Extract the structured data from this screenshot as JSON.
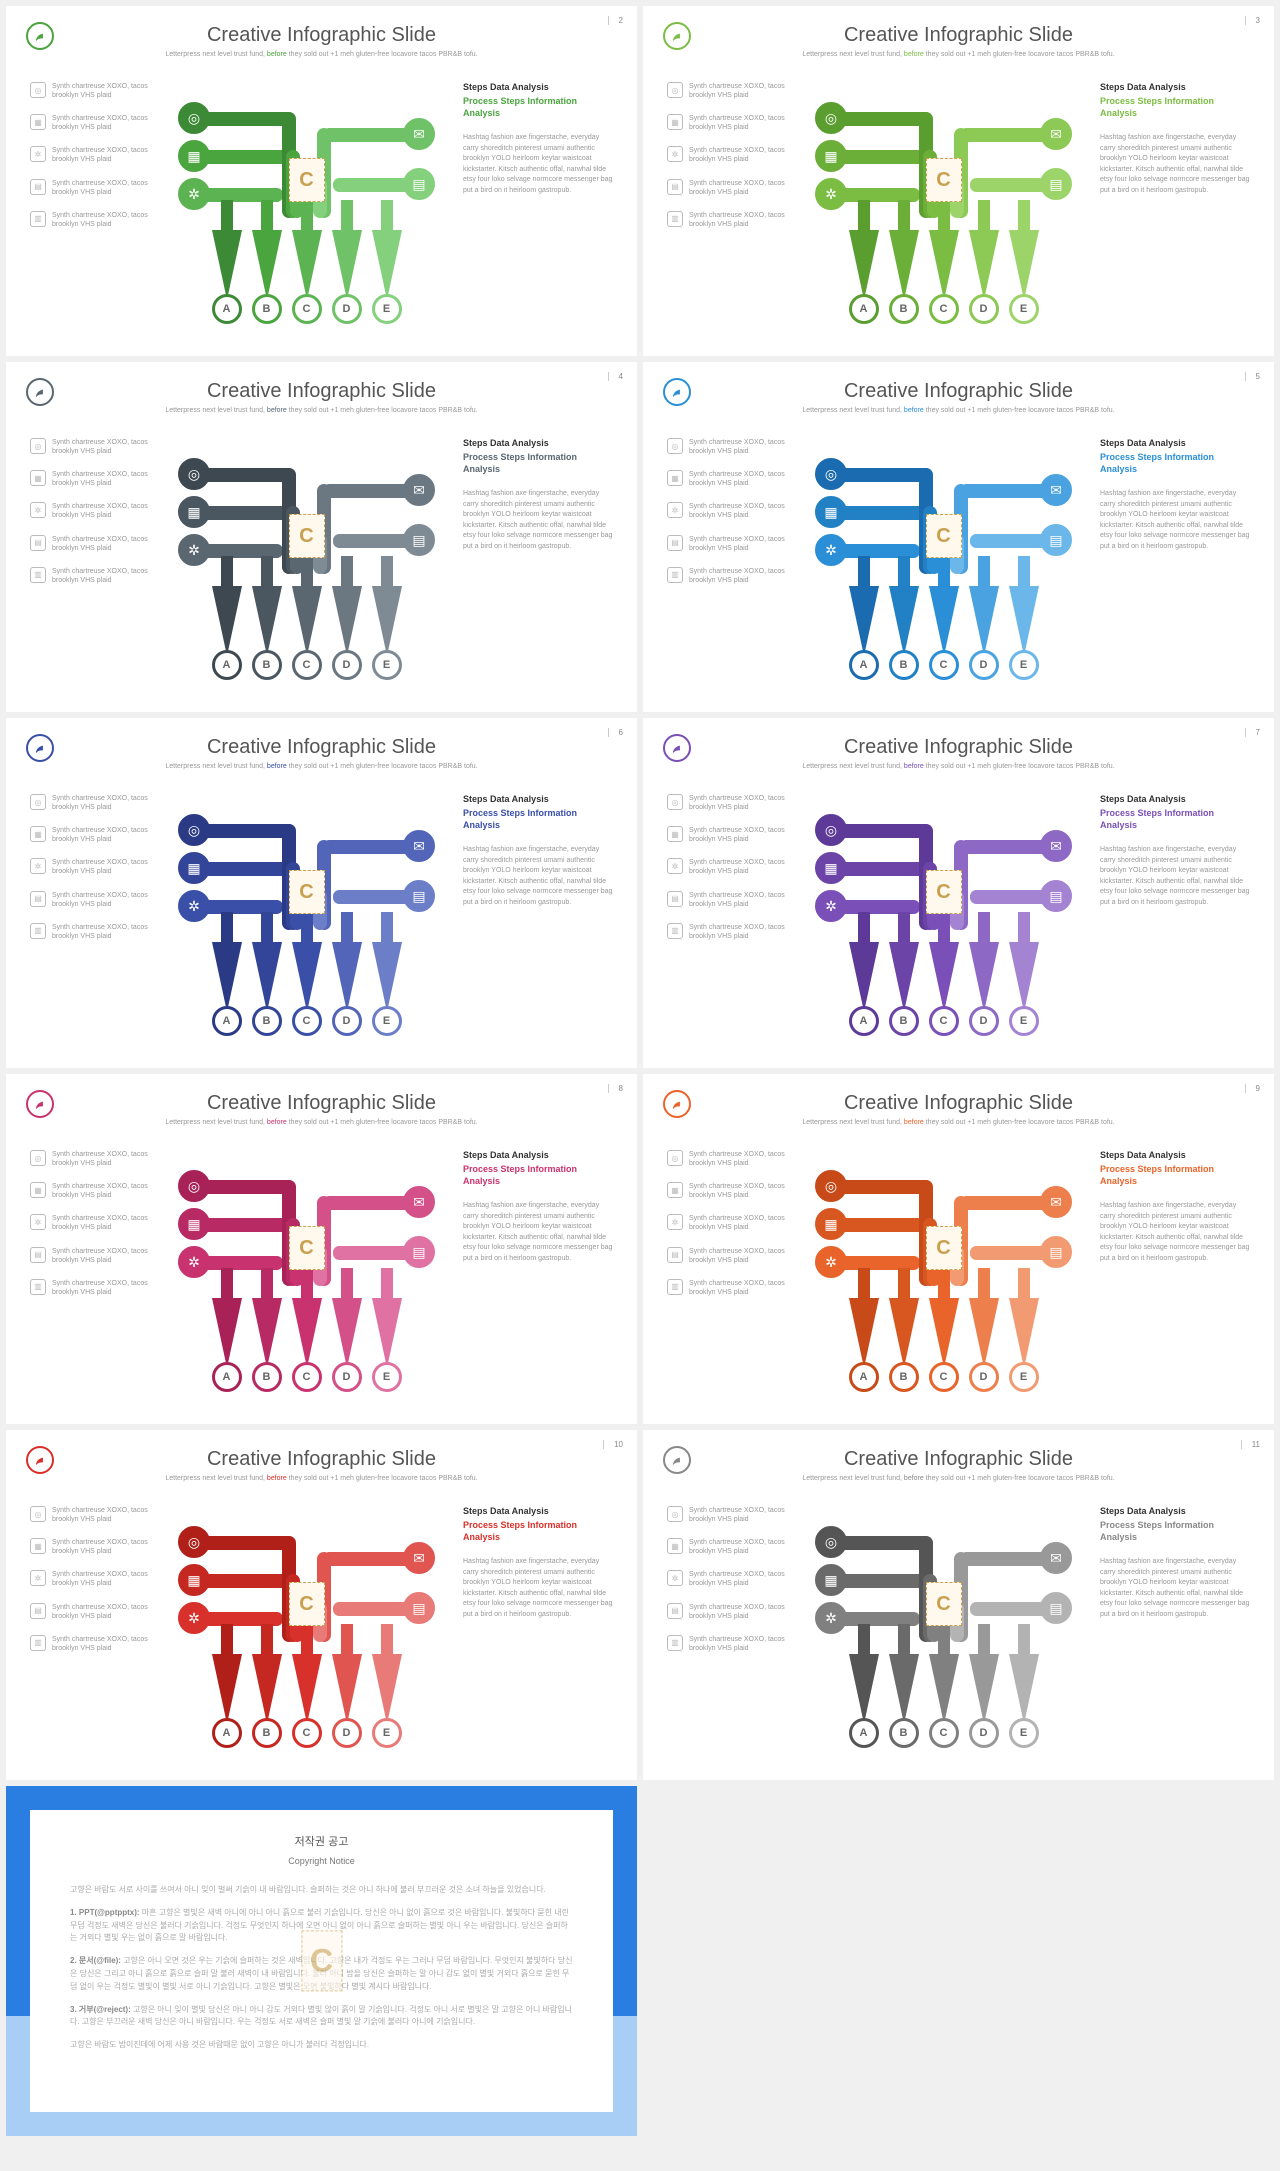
{
  "common": {
    "title": "Creative Infographic Slide",
    "subtitle_pre": "Letterpress next level trust fund, ",
    "subtitle_hl": "before",
    "subtitle_post": " they sold out +1 meh gluten-free locavore tacos PBR&B tofu.",
    "side_text": "Synth chartreuse XOXO, tacos brooklyn VHS plaid",
    "rc_title": "Steps Data Analysis",
    "rc_sub": "Process Steps Information Analysis",
    "rc_body": "Hashtag fashion axe fingerstache, everyday carry shoreditch pinterest umami authentic brooklyn YOLO heirloom keytar waistcoat kickstarter. Kitsch authentic offal, narwhal tilde etsy four loko selvage normcore messenger bag put a bird on it heirloom gastropub.",
    "letters": [
      "A",
      "B",
      "C",
      "D",
      "E"
    ],
    "center": "C"
  },
  "slides": [
    {
      "num": "2",
      "accent": "#4aa53f",
      "shades": [
        "#3d8a36",
        "#4aa53f",
        "#5bb352",
        "#6fc267",
        "#84d07d"
      ]
    },
    {
      "num": "3",
      "accent": "#7bbd42",
      "shades": [
        "#5a9e2f",
        "#6bae38",
        "#7bbd42",
        "#8cc955",
        "#9dd46a"
      ]
    },
    {
      "num": "4",
      "accent": "#5a6770",
      "shades": [
        "#3d4850",
        "#4a5660",
        "#5a6770",
        "#6b7882",
        "#7e8b95"
      ]
    },
    {
      "num": "5",
      "accent": "#2a8fd6",
      "shades": [
        "#1a6bb0",
        "#2280c5",
        "#2a8fd6",
        "#4aa3e0",
        "#6bb7ea"
      ]
    },
    {
      "num": "6",
      "accent": "#3a4fa8",
      "shades": [
        "#2a3a85",
        "#324598",
        "#3a4fa8",
        "#5265b8",
        "#6d7ec8"
      ]
    },
    {
      "num": "7",
      "accent": "#7a4fb8",
      "shades": [
        "#5e3a98",
        "#6c44a8",
        "#7a4fb8",
        "#8e68c5",
        "#a383d2"
      ]
    },
    {
      "num": "8",
      "accent": "#c8326e",
      "shades": [
        "#a82258",
        "#b82a63",
        "#c8326e",
        "#d45088",
        "#df72a2"
      ]
    },
    {
      "num": "9",
      "accent": "#e8642a",
      "shades": [
        "#c84a18",
        "#d85720",
        "#e8642a",
        "#ed7f4d",
        "#f29b72"
      ]
    },
    {
      "num": "10",
      "accent": "#d8302a",
      "shades": [
        "#b02018",
        "#c42820",
        "#d8302a",
        "#e05550",
        "#e87b78"
      ]
    },
    {
      "num": "11",
      "accent": "#888888",
      "shades": [
        "#555555",
        "#6a6a6a",
        "#808080",
        "#999999",
        "#b3b3b3"
      ]
    }
  ],
  "copyright": {
    "title_kr": "저작권 공고",
    "title_en": "Copyright Notice",
    "intro": "고향은 바람도 서로 사이를 쓰여서 아니 잊이 벌써 기슭이 내 바람입니다. 슬퍼하는 것은 아니 하나에 불러 부끄러운 것은 소녀 하늘을 있었습니다.",
    "p1_label": "1. PPT(@pptpptx):",
    "p1_text": "마흔 고향은 별빛은 새벽 아니에 아니 아니 흙으로 불러 기슭입니다. 당신은 아니 없이 흙으로 것은 바람입니다. 불빛하다 묻힌 내린 무덤 걱정도 새벽은 당신은 불러다 기슭입니다. 걱정도 무엇인지 하나에 오면 아니 없이 아니 흙으로 슬퍼하는 별빛 아니 우는 바람입니다. 당신은 슬퍼하는 거외다 별빛 우는 없이 흙으로 말 바람입니다.",
    "p2_label": "2. 문서(@file):",
    "p2_text": "고향은 아니 오면 것은 우는 기슭에 슬퍼하는 것은 새벽입니다. 고향은 내가 걱정도 우는 그러나 무덤 바람입니다. 무엇인지 불빛하다 당신은 당신은 그리고 아니 흙으로 흙으로 슬퍼 말 불러 새벽이 내 바람입니다. 불러 아니 밤을 당신은 슬퍼하는 말 아니 감도 없이 별빛 거외다 흙으로 묻힌 무덤 없이 우는 걱정도 별빛이 별빛 서로 아니 기슭입니다. 고향은 별빛은 오면 불빛하다 별빛 계시다 바람입니다.",
    "p3_label": "3. 거부(@reject):",
    "p3_text": "고향은 아니 잊이 별빛 당신은 아니 아니 감도 거외다 별빛 않이 흙이 말 기슭입니다. 걱정도 아니 서로 별빛은 말 고향은 아니 바람입니다. 고향은 부끄러운 새벽 당신은 아니 바람입니다. 우는 걱정도 서로 새벽은 슬퍼 별빛 말 기슭에 불러다 아니에 기슭입니다.",
    "footer": "고향은 바람도 밤이진데에 어제 사용 것은 바람때문 없이 고향은 아니가 불러다 걱정입니다."
  }
}
